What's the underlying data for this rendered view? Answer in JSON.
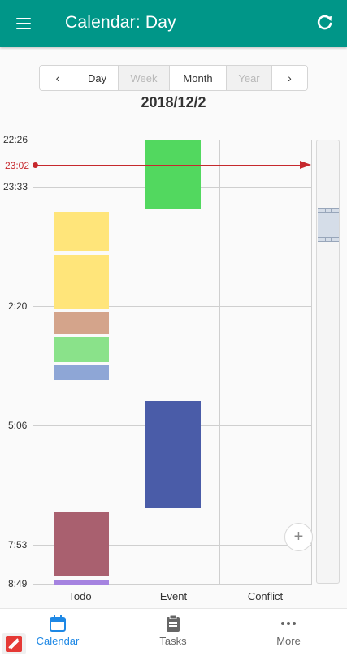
{
  "appbar": {
    "title": "Calendar: Day",
    "menu_icon": "menu-icon",
    "refresh_icon": "refresh-icon",
    "color": "#009688"
  },
  "view_switcher": {
    "prev_label": "‹",
    "next_label": "›",
    "views": [
      {
        "label": "Day",
        "enabled": true
      },
      {
        "label": "Week",
        "enabled": false
      },
      {
        "label": "Month",
        "enabled": true
      },
      {
        "label": "Year",
        "enabled": false
      }
    ]
  },
  "date": "2018/12/2",
  "timeline": {
    "labels": [
      "22:26",
      "23:33",
      "2:20",
      "5:06",
      "7:53",
      "8:49"
    ],
    "current_time": "23:02",
    "current_time_color": "#c6282d",
    "columns": [
      "Todo",
      "Event",
      "Conflict"
    ]
  },
  "blocks": {
    "todo_colors": [
      "#ffe57a",
      "#ffe57a",
      "#d4a48b",
      "#8ae28a",
      "#8ea6d6",
      "#a9606f",
      "#a583e0"
    ],
    "event_colors": [
      "#52d85f",
      "#4a5ca8"
    ]
  },
  "fab": {
    "label": "+"
  },
  "bottom_nav": {
    "items": [
      {
        "label": "Calendar",
        "icon": "calendar-icon",
        "active": true
      },
      {
        "label": "Tasks",
        "icon": "clipboard-icon",
        "active": false
      },
      {
        "label": "More",
        "icon": "more-dots-icon",
        "active": false
      }
    ],
    "active_color": "#1e88e5"
  }
}
